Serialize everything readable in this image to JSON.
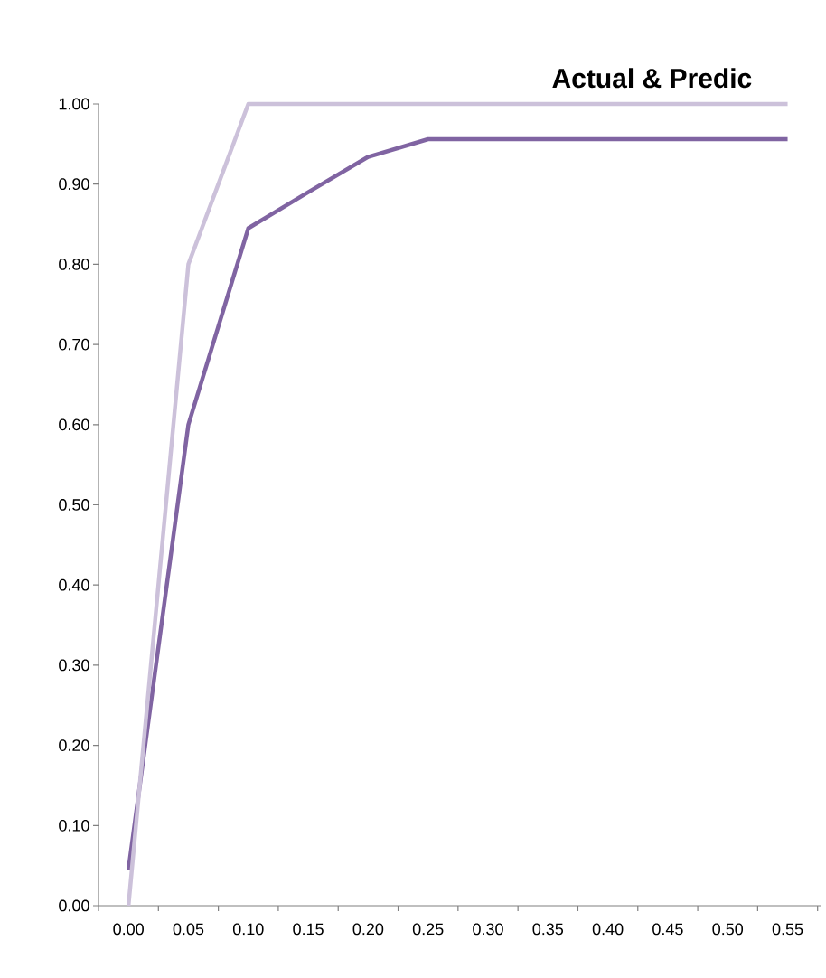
{
  "chart_data": {
    "type": "line",
    "title": "Actual & Predic",
    "categories": [
      "0.00",
      "0.05",
      "0.10",
      "0.15",
      "0.20",
      "0.25",
      "0.30",
      "0.35",
      "0.40",
      "0.45",
      "0.50",
      "0.55"
    ],
    "series": [
      {
        "color": "#8064a2",
        "values": [
          0.045,
          0.6,
          0.845,
          0.89,
          0.934,
          0.956,
          0.956,
          0.956,
          0.956,
          0.956,
          0.956,
          0.956
        ]
      },
      {
        "color": "#ccc1da",
        "values": [
          0.0,
          0.8,
          1.0,
          1.0,
          1.0,
          1.0,
          1.0,
          1.0,
          1.0,
          1.0,
          1.0,
          1.0
        ]
      }
    ],
    "ylim": [
      0,
      1.0
    ],
    "yticks": [
      {
        "value": 0,
        "label": "0.00"
      },
      {
        "value": 0.1,
        "label": "0.10"
      },
      {
        "value": 0.2,
        "label": "0.20"
      },
      {
        "value": 0.3,
        "label": "0.30"
      },
      {
        "value": 0.4,
        "label": "0.40"
      },
      {
        "value": 0.5,
        "label": "0.50"
      },
      {
        "value": 0.6,
        "label": "0.60"
      },
      {
        "value": 0.7,
        "label": "0.70"
      },
      {
        "value": 0.8,
        "label": "0.80"
      },
      {
        "value": 0.9,
        "label": "0.90"
      },
      {
        "value": 1.0,
        "label": "1.00"
      }
    ],
    "grid": false,
    "legend": false,
    "marker": "none",
    "line_style": "solid"
  }
}
